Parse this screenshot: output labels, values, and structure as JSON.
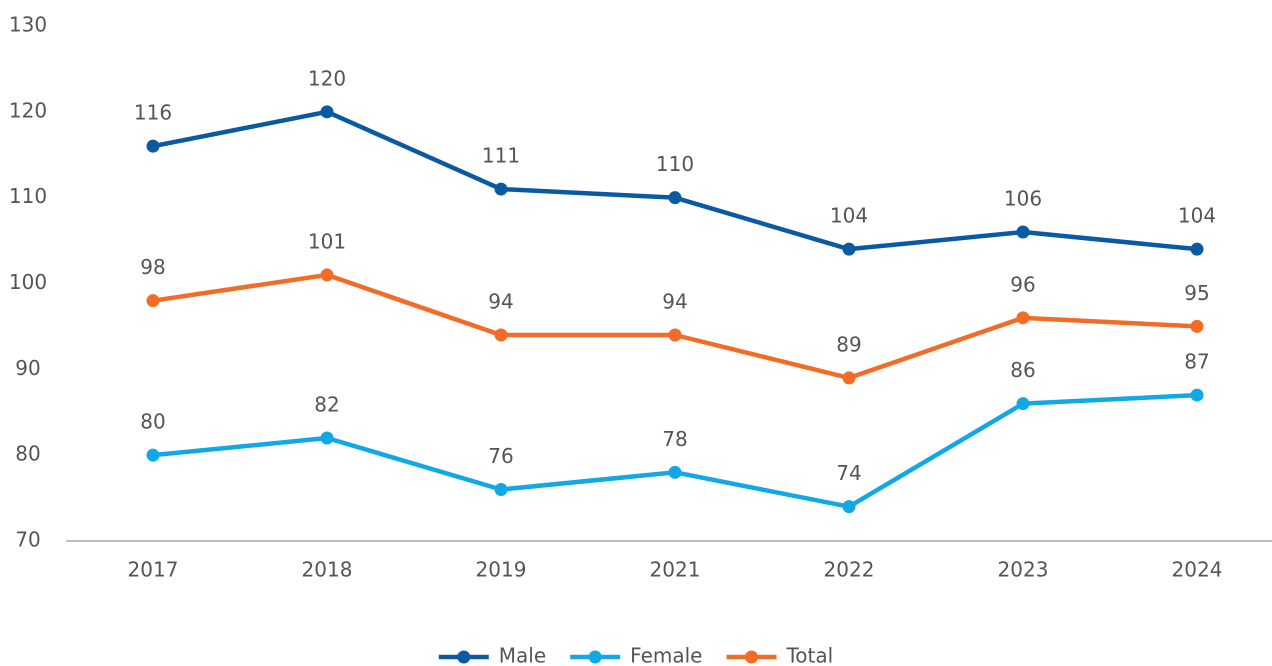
{
  "chart_data": {
    "type": "line",
    "categories": [
      "2017",
      "2018",
      "2019",
      "2021",
      "2022",
      "2023",
      "2024"
    ],
    "series": [
      {
        "name": "Male",
        "color": "#0a5aa3",
        "values": [
          116,
          120,
          111,
          110,
          104,
          106,
          104
        ]
      },
      {
        "name": "Female",
        "color": "#12a8e6",
        "values": [
          80,
          82,
          76,
          78,
          74,
          86,
          87
        ]
      },
      {
        "name": "Total",
        "color": "#f26c27",
        "values": [
          98,
          101,
          94,
          94,
          89,
          96,
          95
        ]
      }
    ],
    "ylim": [
      70,
      130
    ],
    "yticks": [
      70,
      80,
      90,
      100,
      110,
      120,
      130
    ],
    "grid": false,
    "legend": "bottom",
    "data_labels": true
  }
}
